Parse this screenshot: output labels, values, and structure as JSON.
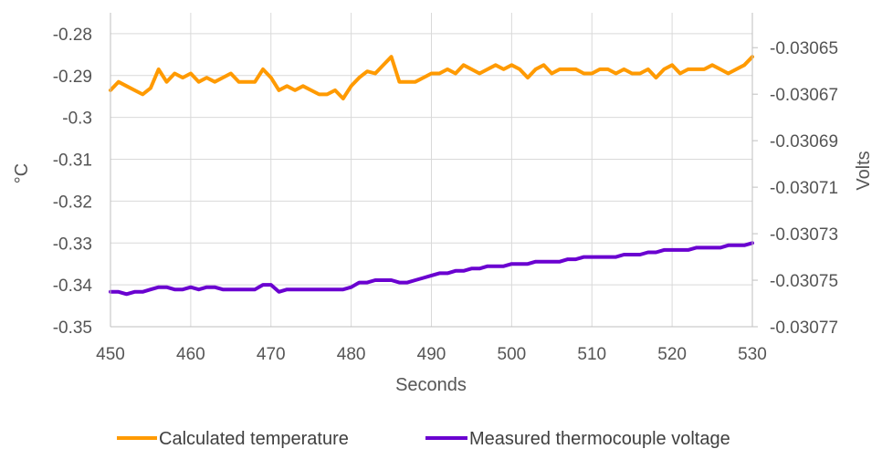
{
  "chart_data": {
    "type": "line",
    "title": "",
    "xlabel": "Seconds",
    "ylabel_left": "°C",
    "ylabel_right": "Volts",
    "xlim": [
      450,
      530
    ],
    "ylim_left": [
      -0.35,
      -0.275
    ],
    "ylim_right": [
      -0.03077,
      -0.030635
    ],
    "x_ticks": [
      450,
      460,
      470,
      480,
      490,
      500,
      510,
      520,
      530
    ],
    "x_tick_labels": [
      "450",
      "460",
      "470",
      "480",
      "490",
      "500",
      "510",
      "520",
      "530"
    ],
    "y_left_ticks": [
      -0.28,
      -0.29,
      -0.3,
      -0.31,
      -0.32,
      -0.33,
      -0.34,
      -0.35
    ],
    "y_left_tick_labels": [
      "-0.28",
      "-0.29",
      "-0.3",
      "-0.31",
      "-0.32",
      "-0.33",
      "-0.34",
      "-0.35"
    ],
    "y_right_ticks": [
      -0.03065,
      -0.03067,
      -0.03069,
      -0.03071,
      -0.03073,
      -0.03075,
      -0.03077
    ],
    "y_right_tick_labels": [
      "-0.03065",
      "-0.03067",
      "-0.03069",
      "-0.03071",
      "-0.03073",
      "-0.03075",
      "-0.03077"
    ],
    "grid": true,
    "legend_position": "bottom",
    "series": [
      {
        "name": "Calculated temperature",
        "axis": "left",
        "color": "#FF9A00",
        "x": [
          450,
          451,
          452,
          453,
          454,
          455,
          456,
          457,
          458,
          459,
          460,
          461,
          462,
          463,
          464,
          465,
          466,
          467,
          468,
          469,
          470,
          471,
          472,
          473,
          474,
          475,
          476,
          477,
          478,
          479,
          480,
          481,
          482,
          483,
          484,
          485,
          486,
          487,
          488,
          489,
          490,
          491,
          492,
          493,
          494,
          495,
          496,
          497,
          498,
          499,
          500,
          501,
          502,
          503,
          504,
          505,
          506,
          507,
          508,
          509,
          510,
          511,
          512,
          513,
          514,
          515,
          516,
          517,
          518,
          519,
          520,
          521,
          522,
          523,
          524,
          525,
          526,
          527,
          528,
          529,
          530
        ],
        "values": [
          -0.2935,
          -0.2915,
          -0.2925,
          -0.2935,
          -0.2945,
          -0.293,
          -0.2885,
          -0.2915,
          -0.2895,
          -0.2905,
          -0.2895,
          -0.2915,
          -0.2905,
          -0.2915,
          -0.2905,
          -0.2895,
          -0.2915,
          -0.2915,
          -0.2915,
          -0.2885,
          -0.2905,
          -0.2935,
          -0.2925,
          -0.2935,
          -0.2925,
          -0.2935,
          -0.2945,
          -0.2945,
          -0.2935,
          -0.2955,
          -0.2925,
          -0.2905,
          -0.289,
          -0.2895,
          -0.2875,
          -0.2855,
          -0.2915,
          -0.2915,
          -0.2915,
          -0.2905,
          -0.2895,
          -0.2895,
          -0.2885,
          -0.2895,
          -0.2875,
          -0.2885,
          -0.2895,
          -0.2885,
          -0.2875,
          -0.2885,
          -0.2875,
          -0.2885,
          -0.2905,
          -0.2885,
          -0.2875,
          -0.2895,
          -0.2885,
          -0.2885,
          -0.2885,
          -0.2895,
          -0.2895,
          -0.2885,
          -0.2885,
          -0.2895,
          -0.2885,
          -0.2895,
          -0.2895,
          -0.2885,
          -0.2905,
          -0.2885,
          -0.2875,
          -0.2895,
          -0.2885,
          -0.2885,
          -0.2885,
          -0.2875,
          -0.2885,
          -0.2895,
          -0.2885,
          -0.2875,
          -0.2855
        ]
      },
      {
        "name": "Measured thermocouple voltage",
        "axis": "right",
        "color": "#6A00D0",
        "x": [
          450,
          451,
          452,
          453,
          454,
          455,
          456,
          457,
          458,
          459,
          460,
          461,
          462,
          463,
          464,
          465,
          466,
          467,
          468,
          469,
          470,
          471,
          472,
          473,
          474,
          475,
          476,
          477,
          478,
          479,
          480,
          481,
          482,
          483,
          484,
          485,
          486,
          487,
          488,
          489,
          490,
          491,
          492,
          493,
          494,
          495,
          496,
          497,
          498,
          499,
          500,
          501,
          502,
          503,
          504,
          505,
          506,
          507,
          508,
          509,
          510,
          511,
          512,
          513,
          514,
          515,
          516,
          517,
          518,
          519,
          520,
          521,
          522,
          523,
          524,
          525,
          526,
          527,
          528,
          529,
          530
        ],
        "values": [
          -0.030755,
          -0.030755,
          -0.030756,
          -0.030755,
          -0.030755,
          -0.030754,
          -0.030753,
          -0.030753,
          -0.030754,
          -0.030754,
          -0.030753,
          -0.030754,
          -0.030753,
          -0.030753,
          -0.030754,
          -0.030754,
          -0.030754,
          -0.030754,
          -0.030754,
          -0.030752,
          -0.030752,
          -0.030755,
          -0.030754,
          -0.030754,
          -0.030754,
          -0.030754,
          -0.030754,
          -0.030754,
          -0.030754,
          -0.030754,
          -0.030753,
          -0.030751,
          -0.030751,
          -0.03075,
          -0.03075,
          -0.03075,
          -0.030751,
          -0.030751,
          -0.03075,
          -0.030749,
          -0.030748,
          -0.030747,
          -0.030747,
          -0.030746,
          -0.030746,
          -0.030745,
          -0.030745,
          -0.030744,
          -0.030744,
          -0.030744,
          -0.030743,
          -0.030743,
          -0.030743,
          -0.030742,
          -0.030742,
          -0.030742,
          -0.030742,
          -0.030741,
          -0.030741,
          -0.03074,
          -0.03074,
          -0.03074,
          -0.03074,
          -0.03074,
          -0.030739,
          -0.030739,
          -0.030739,
          -0.030738,
          -0.030738,
          -0.030737,
          -0.030737,
          -0.030737,
          -0.030737,
          -0.030736,
          -0.030736,
          -0.030736,
          -0.030736,
          -0.030735,
          -0.030735,
          -0.030735,
          -0.030734
        ]
      }
    ]
  }
}
